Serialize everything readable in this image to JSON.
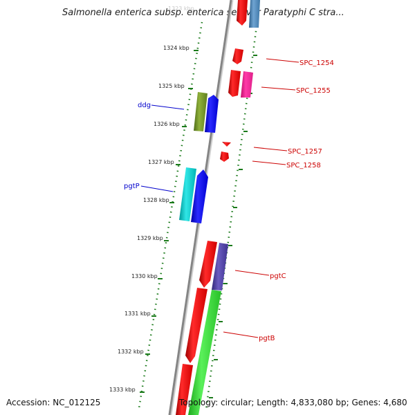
{
  "title": "Salmonella enterica subsp. enterica serovar Paratyphi C stra...",
  "top_tick_partial": "1323 kbp",
  "ticks": [
    {
      "label": "1324 kbp"
    },
    {
      "label": "1325 kbp"
    },
    {
      "label": "1326 kbp"
    },
    {
      "label": "1327 kbp"
    },
    {
      "label": "1328 kbp"
    },
    {
      "label": "1329 kbp"
    },
    {
      "label": "1330 kbp"
    },
    {
      "label": "1331 kbp"
    },
    {
      "label": "1332 kbp"
    },
    {
      "label": "1333 kbp"
    }
  ],
  "gene_labels": {
    "spc_1254": "SPC_1254",
    "spc_1255": "SPC_1255",
    "spc_1257": "SPC_1257",
    "spc_1258": "SPC_1258",
    "pgtc": "pgtC",
    "pgtb": "pgtB",
    "ddg": "ddg",
    "pgtp": "pgtP"
  },
  "colors": {
    "label_red": "#cc0000",
    "label_blue": "#0000cc",
    "backbone": "#888888",
    "tick_dots": "#1a7a1a",
    "gene_red": "#ee0000",
    "gene_pink": "#ff1493",
    "gene_olive": "#6b8e23",
    "gene_blue": "#0000ee",
    "gene_cyan": "#00c8c8",
    "gene_purple": "#4b3c9c",
    "gene_green": "#33dd33",
    "gene_steel": "#4682b4"
  },
  "footer": {
    "accession": "Accession: NC_012125",
    "topology": "Topology: circular; Length: 4,833,080 bp; Genes: 4,680"
  }
}
